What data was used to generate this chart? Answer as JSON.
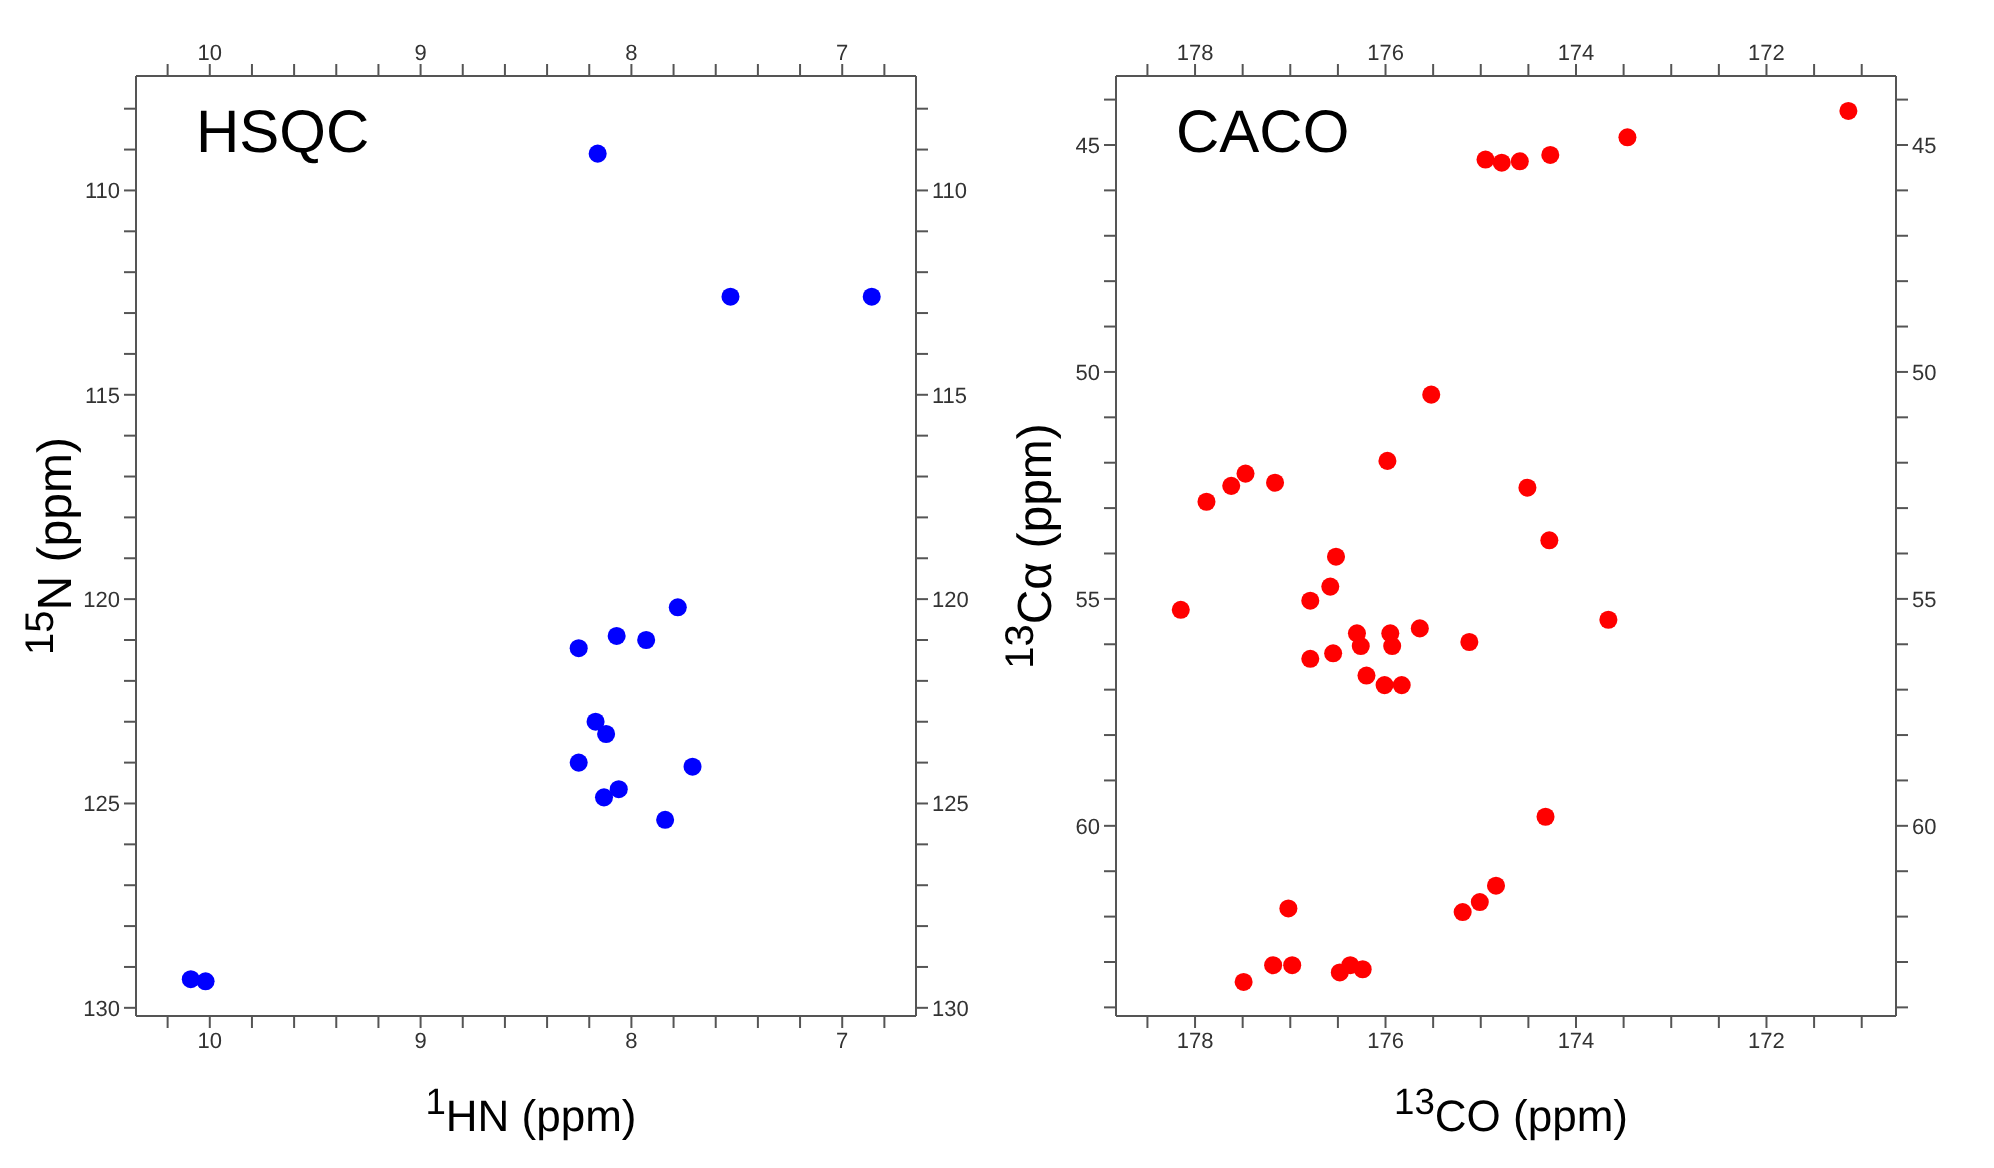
{
  "chart_data": [
    {
      "type": "scatter",
      "title": "HSQC",
      "xlabel": "$^{1}$HN (ppm)",
      "ylabel": "$^{15}$N (ppm)",
      "color": "#0000ff",
      "marker": "circle",
      "x": [
        8.16,
        7.53,
        6.86,
        7.78,
        8.07,
        7.93,
        8.25,
        8.17,
        8.12,
        8.25,
        7.71,
        8.06,
        8.13,
        7.84,
        10.02,
        10.09
      ],
      "values": [
        109.1,
        112.6,
        112.6,
        120.2,
        120.9,
        121.0,
        121.2,
        123.0,
        123.3,
        124.0,
        124.1,
        124.65,
        124.85,
        125.4,
        129.35,
        129.3
      ],
      "xlim": [
        10.35,
        6.65
      ],
      "xticks": [
        {
          "value": 10.2,
          "label": null
        },
        10,
        {
          "value": 9.8,
          "label": null
        },
        {
          "value": 9.6,
          "label": null
        },
        {
          "value": 9.4,
          "label": null
        },
        {
          "value": 9.2,
          "label": null
        },
        9,
        {
          "value": 8.8,
          "label": null
        },
        {
          "value": 8.6,
          "label": null
        },
        {
          "value": 8.4,
          "label": null
        },
        {
          "value": 8.2,
          "label": null
        },
        8,
        {
          "value": 7.8,
          "label": null
        },
        {
          "value": 7.6,
          "label": null
        },
        {
          "value": 7.4,
          "label": null
        },
        {
          "value": 7.2,
          "label": null
        },
        7,
        {
          "value": 6.8,
          "label": null
        }
      ],
      "x2lim": [
        10.35,
        6.65
      ],
      "x2ticks": [
        {
          "value": 10.2,
          "label": null
        },
        10,
        {
          "value": 9.8,
          "label": null
        },
        {
          "value": 9.6,
          "label": null
        },
        {
          "value": 9.4,
          "label": null
        },
        {
          "value": 9.2,
          "label": null
        },
        9,
        {
          "value": 8.8,
          "label": null
        },
        {
          "value": 8.6,
          "label": null
        },
        {
          "value": 8.4,
          "label": null
        },
        {
          "value": 8.2,
          "label": null
        },
        8,
        {
          "value": 7.8,
          "label": null
        },
        {
          "value": 7.6,
          "label": null
        },
        {
          "value": 7.4,
          "label": null
        },
        {
          "value": 7.2,
          "label": null
        },
        7,
        {
          "value": 6.8,
          "label": null
        }
      ],
      "ylim": [
        130.2,
        107.2
      ],
      "yticks": [
        {
          "value": 108,
          "label": null
        },
        {
          "value": 109,
          "label": null
        },
        110,
        {
          "value": 111,
          "label": null
        },
        {
          "value": 112,
          "label": null
        },
        {
          "value": 113,
          "label": null
        },
        {
          "value": 114,
          "label": null
        },
        115,
        {
          "value": 116,
          "label": null
        },
        {
          "value": 117,
          "label": null
        },
        {
          "value": 118,
          "label": null
        },
        {
          "value": 119,
          "label": null
        },
        120,
        {
          "value": 121,
          "label": null
        },
        {
          "value": 122,
          "label": null
        },
        {
          "value": 123,
          "label": null
        },
        {
          "value": 124,
          "label": null
        },
        125,
        {
          "value": 126,
          "label": null
        },
        {
          "value": 127,
          "label": null
        },
        {
          "value": 128,
          "label": null
        },
        {
          "value": 129,
          "label": null
        },
        130
      ],
      "y2lim": [
        130.2,
        107.2
      ],
      "y2ticks": [
        {
          "value": 108,
          "label": null
        },
        {
          "value": 109,
          "label": null
        },
        110,
        {
          "value": 111,
          "label": null
        },
        {
          "value": 112,
          "label": null
        },
        {
          "value": 113,
          "label": null
        },
        {
          "value": 114,
          "label": null
        },
        115,
        {
          "value": 116,
          "label": null
        },
        {
          "value": 117,
          "label": null
        },
        {
          "value": 118,
          "label": null
        },
        {
          "value": 119,
          "label": null
        },
        120,
        {
          "value": 121,
          "label": null
        },
        {
          "value": 122,
          "label": null
        },
        {
          "value": 123,
          "label": null
        },
        {
          "value": 124,
          "label": null
        },
        125,
        {
          "value": 126,
          "label": null
        },
        {
          "value": 127,
          "label": null
        },
        {
          "value": 128,
          "label": null
        },
        {
          "value": 129,
          "label": null
        },
        130
      ]
    },
    {
      "type": "scatter",
      "title": "CACO",
      "xlabel": "$^{13}$CO (ppm)",
      "ylabel": "$^{13}$Cα (ppm)",
      "color": "#ff0000",
      "marker": "circle",
      "x": [
        171.14,
        173.46,
        174.27,
        174.59,
        174.78,
        174.95,
        175.52,
        175.98,
        174.51,
        177.16,
        177.47,
        177.62,
        177.88,
        174.28,
        176.52,
        176.58,
        176.79,
        178.15,
        173.66,
        175.64,
        175.12,
        176.3,
        176.26,
        175.95,
        175.93,
        176.79,
        176.55,
        176.2,
        176.01,
        175.83,
        174.32,
        174.84,
        175.01,
        175.19,
        177.02,
        177.18,
        176.98,
        177.49,
        176.48,
        176.37,
        176.24
      ],
      "values": [
        44.25,
        44.83,
        45.22,
        45.36,
        45.39,
        45.32,
        50.5,
        51.96,
        52.55,
        52.44,
        52.24,
        52.51,
        52.86,
        53.71,
        54.07,
        54.73,
        55.04,
        55.24,
        55.46,
        55.65,
        55.95,
        55.76,
        56.04,
        55.76,
        56.04,
        56.32,
        56.2,
        56.69,
        56.9,
        56.9,
        59.8,
        61.32,
        61.68,
        61.9,
        61.82,
        63.07,
        63.07,
        63.44,
        63.23,
        63.07,
        63.16
      ],
      "xlim": [
        178.83,
        170.64
      ],
      "xticks": [
        {
          "value": 178.5,
          "label": null
        },
        178,
        {
          "value": 177.5,
          "label": null
        },
        {
          "value": 177,
          "label": null
        },
        {
          "value": 176.5,
          "label": null
        },
        176,
        {
          "value": 175.5,
          "label": null
        },
        {
          "value": 175,
          "label": null
        },
        {
          "value": 174.5,
          "label": null
        },
        174,
        {
          "value": 173.5,
          "label": null
        },
        {
          "value": 173,
          "label": null
        },
        {
          "value": 172.5,
          "label": null
        },
        172,
        {
          "value": 171.5,
          "label": null
        },
        {
          "value": 171,
          "label": null
        }
      ],
      "x2lim": [
        178.83,
        170.64
      ],
      "x2ticks": [
        {
          "value": 178.5,
          "label": null
        },
        178,
        {
          "value": 177.5,
          "label": null
        },
        {
          "value": 177,
          "label": null
        },
        {
          "value": 176.5,
          "label": null
        },
        176,
        {
          "value": 175.5,
          "label": null
        },
        {
          "value": 175,
          "label": null
        },
        {
          "value": 174.5,
          "label": null
        },
        174,
        {
          "value": 173.5,
          "label": null
        },
        {
          "value": 173,
          "label": null
        },
        {
          "value": 172.5,
          "label": null
        },
        172,
        {
          "value": 171.5,
          "label": null
        },
        {
          "value": 171,
          "label": null
        }
      ],
      "ylim": [
        64.19,
        43.48
      ],
      "yticks": [
        {
          "value": 44,
          "label": null
        },
        45,
        {
          "value": 46,
          "label": null
        },
        {
          "value": 47,
          "label": null
        },
        {
          "value": 48,
          "label": null
        },
        {
          "value": 49,
          "label": null
        },
        50,
        {
          "value": 51,
          "label": null
        },
        {
          "value": 52,
          "label": null
        },
        {
          "value": 53,
          "label": null
        },
        {
          "value": 54,
          "label": null
        },
        55,
        {
          "value": 56,
          "label": null
        },
        {
          "value": 57,
          "label": null
        },
        {
          "value": 58,
          "label": null
        },
        {
          "value": 59,
          "label": null
        },
        60,
        {
          "value": 61,
          "label": null
        },
        {
          "value": 62,
          "label": null
        },
        {
          "value": 63,
          "label": null
        },
        {
          "value": 64,
          "label": null
        }
      ],
      "y2lim": [
        64.19,
        43.48
      ],
      "y2ticks": [
        {
          "value": 44,
          "label": null
        },
        45,
        {
          "value": 46,
          "label": null
        },
        {
          "value": 47,
          "label": null
        },
        {
          "value": 48,
          "label": null
        },
        {
          "value": 49,
          "label": null
        },
        50,
        {
          "value": 51,
          "label": null
        },
        {
          "value": 52,
          "label": null
        },
        {
          "value": 53,
          "label": null
        },
        {
          "value": 54,
          "label": null
        },
        55,
        {
          "value": 56,
          "label": null
        },
        {
          "value": 57,
          "label": null
        },
        {
          "value": 58,
          "label": null
        },
        {
          "value": 59,
          "label": null
        },
        60,
        {
          "value": 61,
          "label": null
        },
        {
          "value": 62,
          "label": null
        },
        {
          "value": 63,
          "label": null
        },
        {
          "value": 64,
          "label": null
        }
      ]
    }
  ]
}
